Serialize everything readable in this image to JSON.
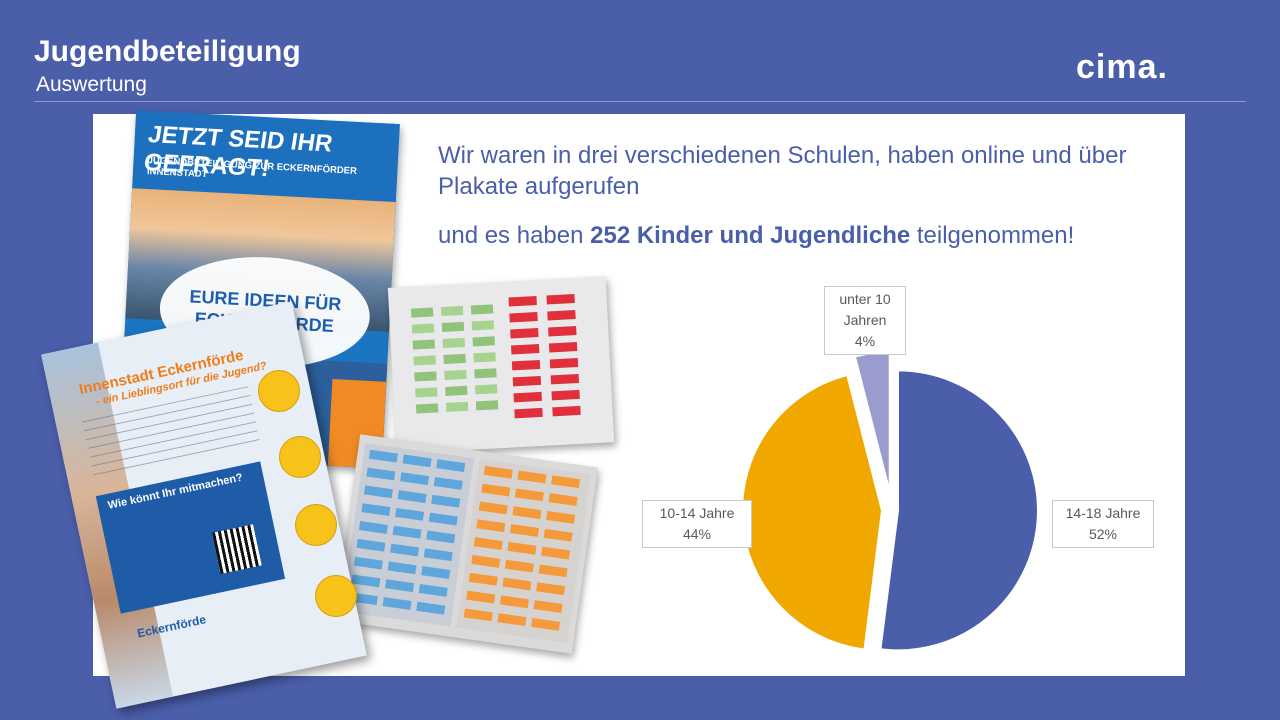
{
  "header": {
    "title": "Jugendbeteiligung",
    "subtitle": "Auswertung",
    "logo": "cima."
  },
  "intro": {
    "line1": "Wir waren in drei verschiedenen Schulen, haben online und über Plakate aufgerufen",
    "line2_pre": "und es haben ",
    "line2_bold": "252 Kinder und Jugendliche",
    "line2_post": " teilgenommen!"
  },
  "poster1": {
    "title": "JETZT SEID IHR GEFRAGT!",
    "subtitle": "JUGENDBETEILIGUNG ZUR ECKERNFÖRDER INNENSTADT",
    "cloud": "EURE IDEEN FÜR ECKERNFÖRDE"
  },
  "poster2": {
    "title": "Innenstadt Eckernförde",
    "subtitle": "- ein Lieblingsort für die Jugend?",
    "box_title": "Wie könnt Ihr mitmachen?",
    "logo": "Eckernförde"
  },
  "chart_data": {
    "type": "pie",
    "categories": [
      "14-18 Jahre",
      "10-14 Jahre",
      "unter 10 Jahren"
    ],
    "values": [
      52,
      44,
      4
    ],
    "value_labels": [
      "52%",
      "44%",
      "4%"
    ],
    "colors": [
      "#4a5eaa",
      "#f0a800",
      "#9a9ccd"
    ],
    "exploded": true
  }
}
